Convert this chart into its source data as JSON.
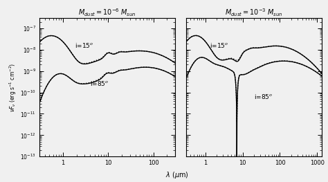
{
  "title_left": "$M_{dust}=10^{-6}$ $M_{sun}$",
  "title_right": "$M_{dust}=10^{-3}$ $M_{sun}$",
  "xlabel": "$\\lambda$ ($\\mu$m)",
  "ylabel": "$\\nu F_\\nu$ (erg s$^{-1}$ cm$^{-2}$)",
  "xlim_left": [
    0.3,
    300
  ],
  "xlim_right": [
    0.3,
    1300
  ],
  "ylim": [
    1e-13,
    3e-07
  ],
  "bg_color": "#f0f0f0",
  "line_color": "#000000",
  "lw": 1.0,
  "label_i15": "i=15$^o$",
  "label_i85": "i=85$^o$",
  "yticks": [
    1e-13,
    1e-12,
    1e-11,
    1e-10,
    1e-09,
    1e-08,
    1e-07
  ],
  "ytick_labels": [
    "$10^{-13}$",
    "$10^{-12}$",
    "$10^{-11}$",
    "$10^{-10}$",
    "$10^{-9}$",
    "$10^{-8}$",
    "$10^{-7}$"
  ]
}
